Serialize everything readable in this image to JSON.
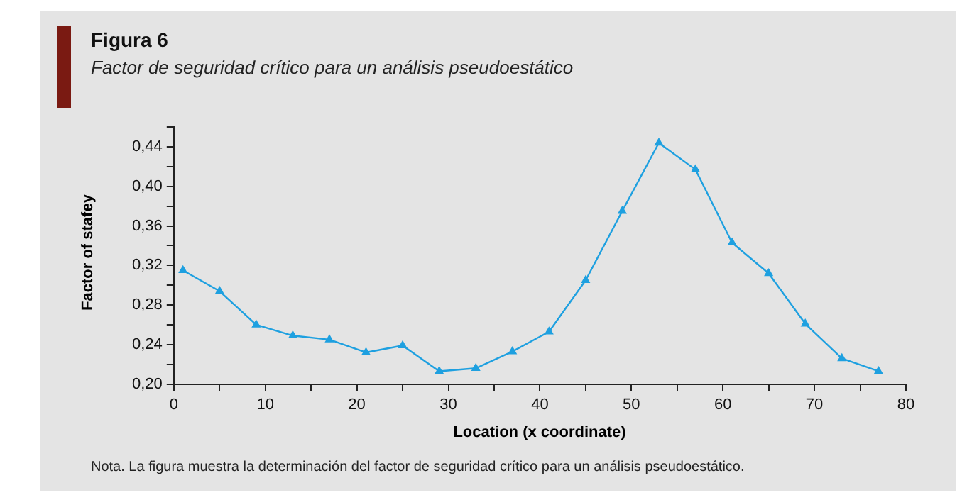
{
  "chart_data": {
    "type": "line",
    "title": "Figura 6",
    "subtitle": "Factor de seguridad crítico para un análisis pseudoestático",
    "xlabel": "Location (x coordinate)",
    "ylabel": "Factor of stafey",
    "annotations": [
      "Nota. La figura muestra la determinación del factor de seguridad crítico para un análisis pseudoestático."
    ],
    "x": [
      1,
      5,
      9,
      13,
      17,
      21,
      25,
      29,
      33,
      37,
      41,
      45,
      49,
      53,
      57,
      61,
      65,
      69,
      73,
      77
    ],
    "series": [
      {
        "color": "#1ea0e0",
        "values": [
          0.315,
          0.294,
          0.26,
          0.249,
          0.245,
          0.232,
          0.239,
          0.213,
          0.216,
          0.233,
          0.253,
          0.305,
          0.375,
          0.444,
          0.417,
          0.343,
          0.312,
          0.261,
          0.226,
          0.213
        ]
      }
    ],
    "xlim": [
      0,
      80
    ],
    "xticks": [
      0,
      {
        "value": 5,
        "label": null
      },
      10,
      {
        "value": 15,
        "label": null
      },
      20,
      {
        "value": 25,
        "label": null
      },
      30,
      {
        "value": 35,
        "label": null
      },
      40,
      {
        "value": 45,
        "label": null
      },
      50,
      {
        "value": 55,
        "label": null
      },
      60,
      {
        "value": 65,
        "label": null
      },
      70,
      {
        "value": 75,
        "label": null
      },
      80
    ],
    "ylim": [
      0.2,
      0.46
    ],
    "yticks": [
      {
        "value": 0.2,
        "label": "0,20"
      },
      {
        "value": 0.22,
        "label": null
      },
      {
        "value": 0.24,
        "label": "0,24"
      },
      {
        "value": 0.26,
        "label": null
      },
      {
        "value": 0.28,
        "label": "0,28"
      },
      {
        "value": 0.3,
        "label": null
      },
      {
        "value": 0.32,
        "label": "0,32"
      },
      {
        "value": 0.34,
        "label": null
      },
      {
        "value": 0.36,
        "label": "0,36"
      },
      {
        "value": 0.38,
        "label": null
      },
      {
        "value": 0.4,
        "label": "0,40"
      },
      {
        "value": 0.42,
        "label": null
      },
      {
        "value": 0.44,
        "label": "0,44"
      },
      {
        "value": 0.46,
        "label": null
      }
    ],
    "grid": false,
    "legend": false,
    "marker": "triangle",
    "line_style": "solid"
  }
}
